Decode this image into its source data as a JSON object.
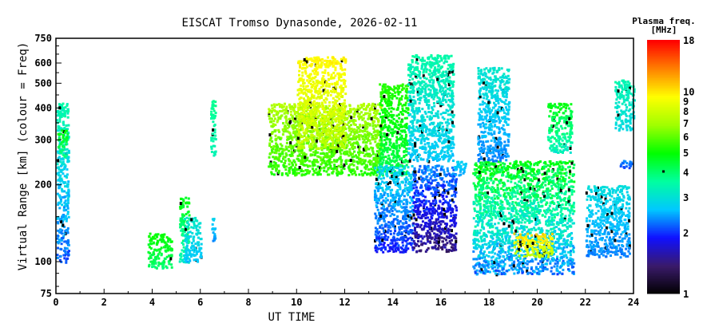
{
  "chart_data": {
    "type": "heatmap",
    "title": "EISCAT Tromso Dynasonde, 2026-02-11",
    "xlabel": "UT TIME",
    "ylabel": "Virtual Range [km] (colour = Freq)",
    "xlim": [
      0,
      24
    ],
    "ylim": [
      75,
      750
    ],
    "yscale": "log",
    "xticks": [
      "0",
      "2",
      "4",
      "6",
      "8",
      "10",
      "12",
      "14",
      "16",
      "18",
      "20",
      "22",
      "24"
    ],
    "yticks": [
      "75",
      "100",
      "200",
      "300",
      "400",
      "500",
      "600",
      "750"
    ],
    "colorbar": {
      "title": "Plasma freq.",
      "units": "[MHz]",
      "range": [
        1,
        18
      ],
      "scale": "log",
      "ticks": [
        "1",
        "2",
        "3",
        "4",
        "5",
        "6",
        "7",
        "8",
        "9",
        "10",
        "18"
      ],
      "colors": [
        "#000000",
        "#3a1a6a",
        "#1010ff",
        "#00c8ff",
        "#00ffa0",
        "#00ff00",
        "#a0ff00",
        "#ffff00",
        "#ff8000",
        "#ff0000"
      ]
    },
    "patches": [
      {
        "t": [
          0.0,
          0.5
        ],
        "h": [
          100,
          420
        ],
        "f": [
          2,
          3.6
        ]
      },
      {
        "t": [
          0.05,
          0.45
        ],
        "h": [
          260,
          330
        ],
        "f": [
          3.5,
          5
        ]
      },
      {
        "t": [
          3.8,
          4.8
        ],
        "h": [
          95,
          130
        ],
        "f": [
          3.8,
          5.2
        ]
      },
      {
        "t": [
          5.1,
          5.5
        ],
        "h": [
          100,
          180
        ],
        "f": [
          3,
          5
        ]
      },
      {
        "t": [
          5.3,
          6.0
        ],
        "h": [
          100,
          150
        ],
        "f": [
          2.5,
          3.2
        ]
      },
      {
        "t": [
          6.4,
          6.6
        ],
        "h": [
          260,
          440
        ],
        "f": [
          3.3,
          3.8
        ]
      },
      {
        "t": [
          6.45,
          6.6
        ],
        "h": [
          120,
          150
        ],
        "f": [
          2.3,
          2.8
        ]
      },
      {
        "t": [
          8.8,
          13.5
        ],
        "h": [
          220,
          420
        ],
        "f": [
          5,
          7.5
        ]
      },
      {
        "t": [
          10.0,
          12.0
        ],
        "h": [
          280,
          640
        ],
        "f": [
          7,
          10
        ]
      },
      {
        "t": [
          13.4,
          14.6
        ],
        "h": [
          220,
          500
        ],
        "f": [
          4,
          5.5
        ]
      },
      {
        "t": [
          13.2,
          14.8
        ],
        "h": [
          110,
          240
        ],
        "f": [
          1.8,
          3
        ]
      },
      {
        "t": [
          14.6,
          16.5
        ],
        "h": [
          250,
          650
        ],
        "f": [
          2.5,
          3.6
        ]
      },
      {
        "t": [
          14.8,
          16.6
        ],
        "h": [
          110,
          240
        ],
        "f": [
          1.3,
          2.5
        ]
      },
      {
        "t": [
          16.5,
          17.0
        ],
        "h": [
          220,
          250
        ],
        "f": [
          2.4,
          2.8
        ]
      },
      {
        "t": [
          17.3,
          21.5
        ],
        "h": [
          90,
          250
        ],
        "f": [
          2,
          5
        ]
      },
      {
        "t": [
          17.5,
          18.8
        ],
        "h": [
          250,
          580
        ],
        "f": [
          2.2,
          3.2
        ]
      },
      {
        "t": [
          19.0,
          20.6
        ],
        "h": [
          105,
          130
        ],
        "f": [
          7,
          11
        ]
      },
      {
        "t": [
          20.4,
          21.4
        ],
        "h": [
          270,
          420
        ],
        "f": [
          3,
          5
        ]
      },
      {
        "t": [
          22.0,
          23.8
        ],
        "h": [
          105,
          200
        ],
        "f": [
          2.2,
          3
        ]
      },
      {
        "t": [
          23.2,
          24.0
        ],
        "h": [
          330,
          520
        ],
        "f": [
          2.8,
          3.5
        ]
      },
      {
        "t": [
          23.4,
          23.9
        ],
        "h": [
          235,
          255
        ],
        "f": [
          2,
          2.5
        ]
      }
    ]
  }
}
